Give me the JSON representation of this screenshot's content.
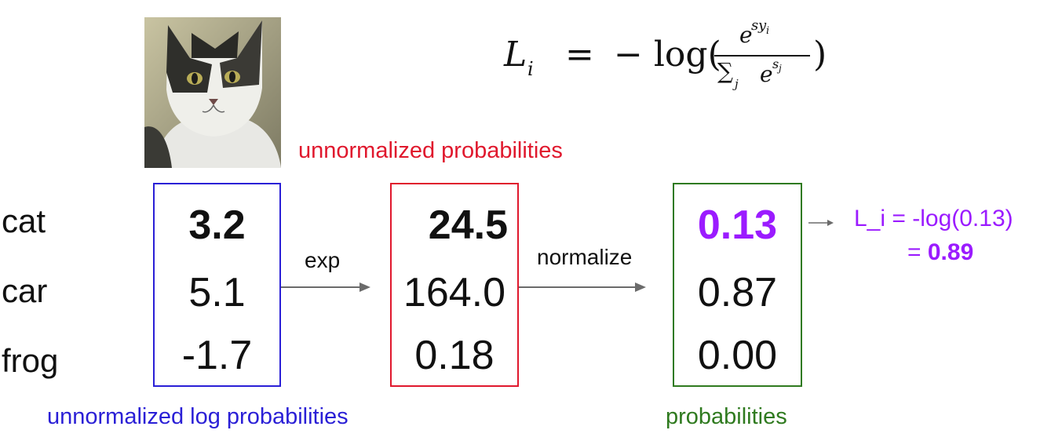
{
  "formula": {
    "lhs_symbol": "L",
    "lhs_sub": "i",
    "equals": "=",
    "minus_log": "− log(",
    "num_base": "e",
    "num_exp_s": "s",
    "num_exp_sub": "y",
    "num_exp_subsub": "i",
    "sum_symbol": "∑",
    "sum_sub": "j",
    "den_base": "e",
    "den_exp": "s",
    "den_exp_sub": "j",
    "close": ")"
  },
  "image_caption": "",
  "classes": [
    "cat",
    "car",
    "frog"
  ],
  "scores_box": {
    "values": [
      "3.2",
      "5.1",
      "-1.7"
    ],
    "border_color": "#2a1fd6",
    "caption": "unnormalized log probabilities",
    "caption_color": "#2a1fd6"
  },
  "exp_box": {
    "values": [
      "24.5",
      "164.0",
      "0.18"
    ],
    "border_color": "#e0182d",
    "caption": "unnormalized probabilities",
    "caption_color": "#e0182d"
  },
  "prob_box": {
    "values": [
      "0.13",
      "0.87",
      "0.00"
    ],
    "border_color": "#2f7a1f",
    "caption": "probabilities",
    "caption_color": "#2f7a1f",
    "highlight_color": "#9b1bff"
  },
  "arrows": {
    "exp_label": "exp",
    "normalize_label": "normalize"
  },
  "loss": {
    "line1": "L_i = -log(0.13)",
    "line2_prefix": "= ",
    "line2_value": "0.89",
    "color": "#9b1bff"
  }
}
